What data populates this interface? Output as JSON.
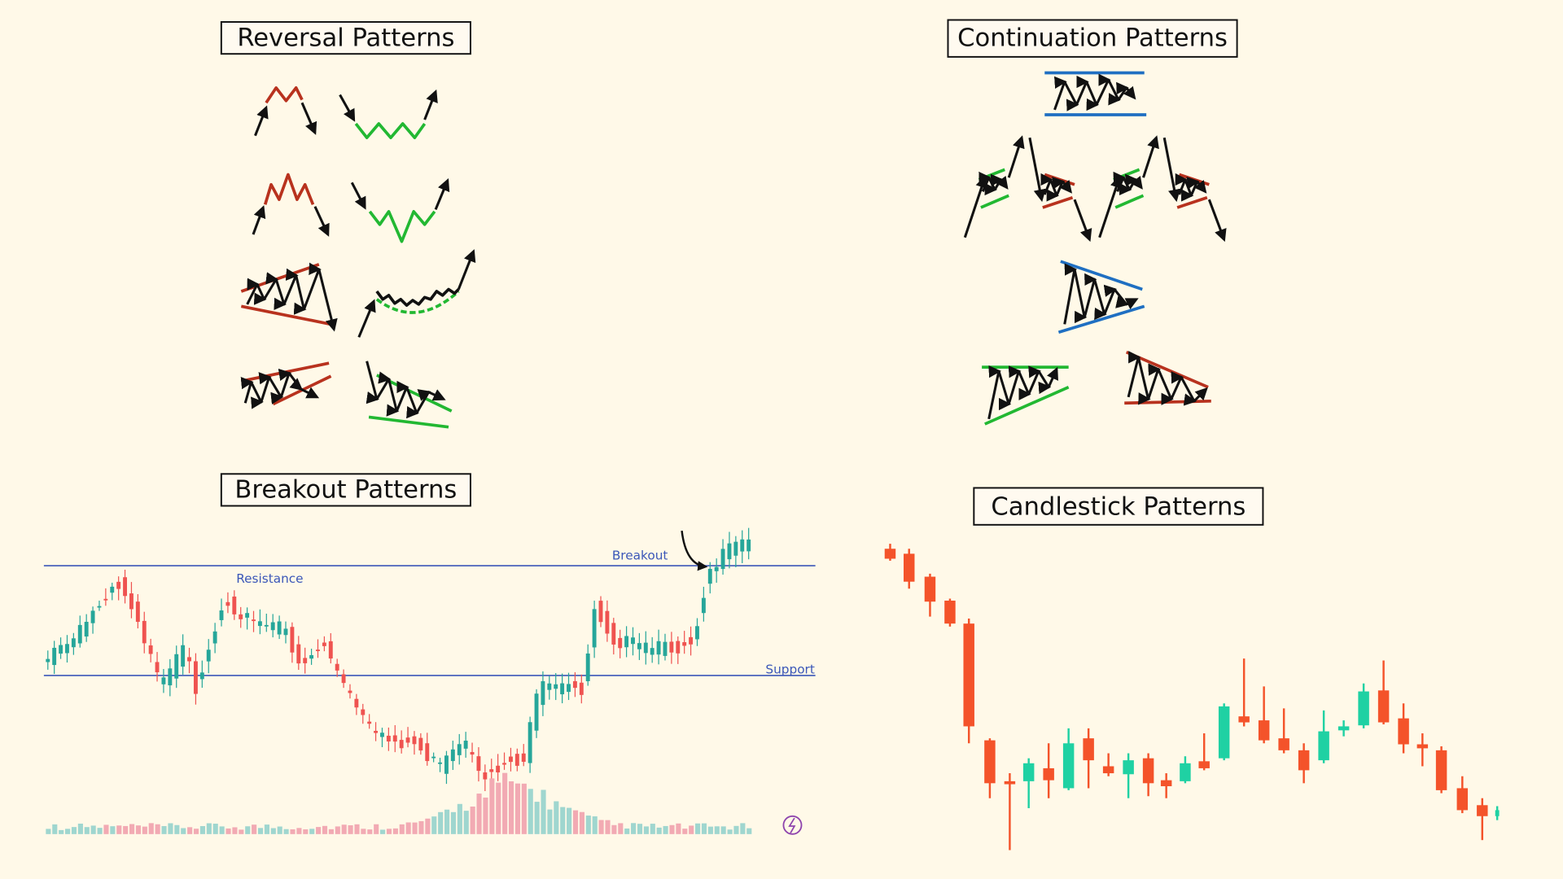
{
  "panels": [
    {
      "title": "Reversal Patterns"
    },
    {
      "title": "Continuation Patterns"
    },
    {
      "title": "Breakout Patterns",
      "labels": [
        "Breakout",
        "Resistance",
        "Support"
      ]
    },
    {
      "title": "Candlestick Patterns"
    }
  ]
}
